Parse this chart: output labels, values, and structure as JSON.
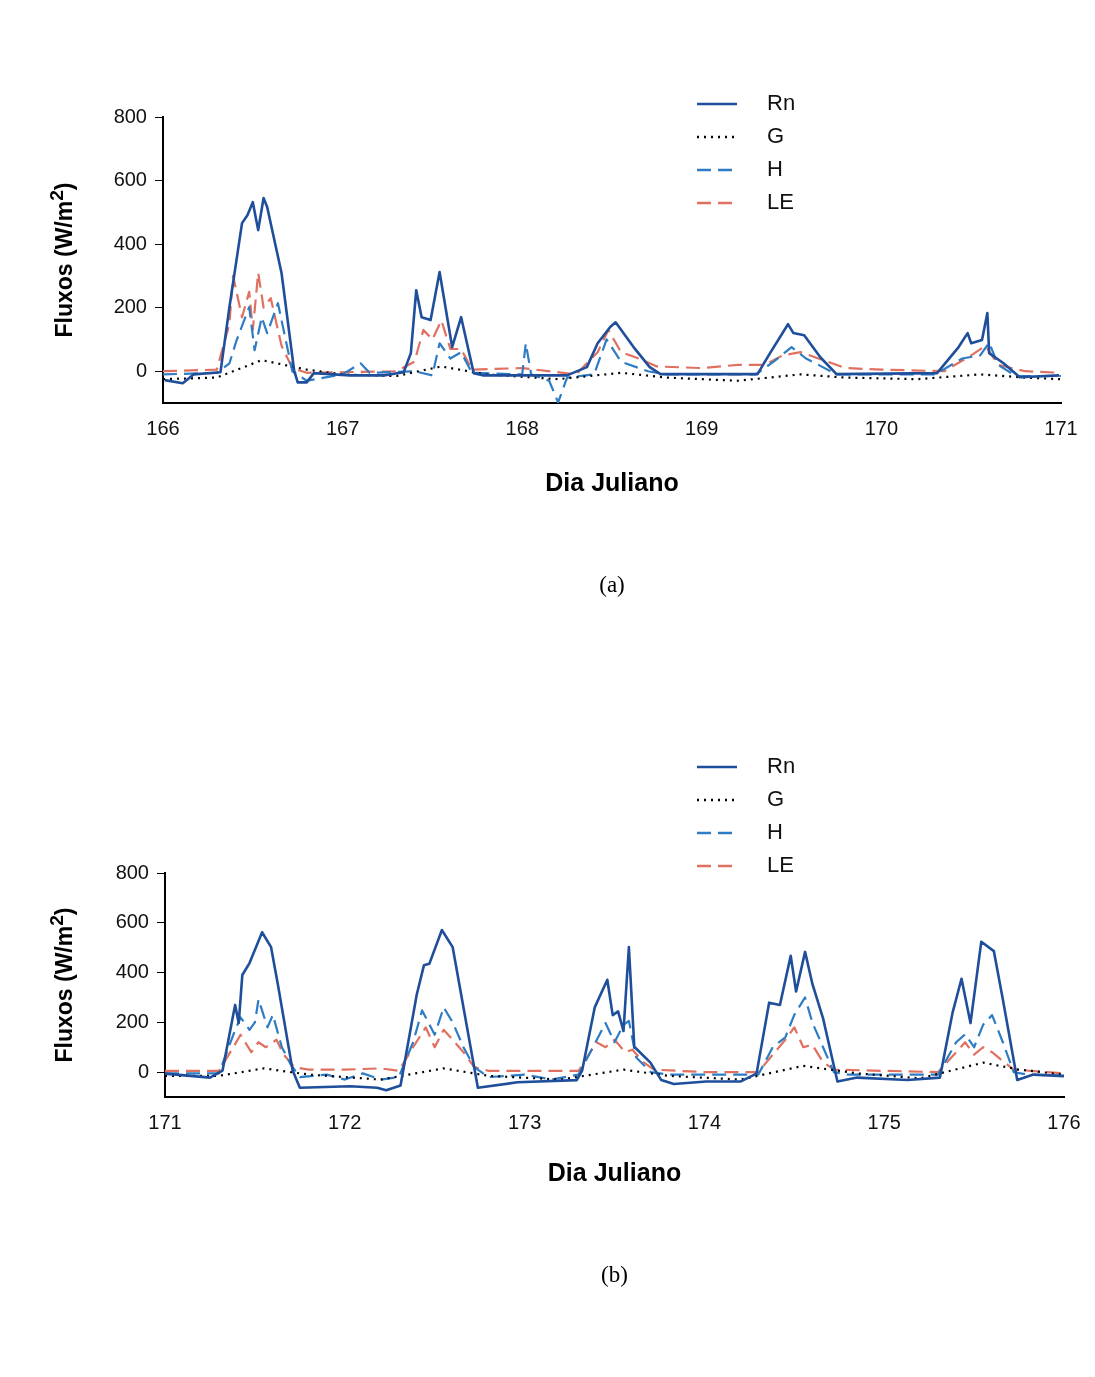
{
  "chart_data": [
    {
      "type": "line",
      "xlabel": "Dia Juliano",
      "ylabel": "Fluxos (W/m$^{2}$)",
      "annotations": [
        "(a)"
      ],
      "xlim": [
        166,
        171
      ],
      "xticks": [
        166,
        167,
        168,
        169,
        170,
        171
      ],
      "ylim": [
        -100,
        800
      ],
      "yticks": [
        0,
        200,
        400,
        600,
        800
      ],
      "legend": "top",
      "marker": "none",
      "series": [
        {
          "name": "Rn",
          "color": "#1f4e9a",
          "line_style": "solid",
          "x": [
            166.01,
            166.11,
            166.17,
            166.32,
            166.37,
            166.44,
            166.47,
            166.5,
            166.53,
            166.56,
            166.58,
            166.66,
            166.73,
            166.75,
            166.8,
            166.84,
            167.04,
            167.23,
            167.34,
            167.38,
            167.41,
            167.44,
            167.49,
            167.54,
            167.61,
            167.66,
            167.73,
            167.78,
            168.25,
            168.36,
            168.42,
            168.49,
            168.52,
            168.62,
            168.71,
            168.77,
            169.31,
            169.38,
            169.48,
            169.51,
            169.57,
            169.66,
            169.75,
            170.31,
            170.43,
            170.48,
            170.5,
            170.56,
            170.59,
            170.6,
            170.68,
            170.77,
            170.99
          ],
          "values": [
            -28,
            -38,
            -10,
            -3,
            202,
            466,
            491,
            532,
            444,
            545,
            517,
            309,
            3,
            -35,
            -35,
            -6,
            -13,
            -13,
            -3,
            57,
            255,
            170,
            161,
            312,
            76,
            170,
            -6,
            -13,
            -13,
            13,
            88,
            139,
            154,
            76,
            13,
            -9,
            -9,
            57,
            148,
            120,
            113,
            44,
            -9,
            -6,
            76,
            120,
            88,
            98,
            183,
            57,
            25,
            -19,
            -13
          ]
        },
        {
          "name": "G",
          "color": "#000000",
          "line_style": "dotted",
          "x": [
            166,
            166.3,
            166.55,
            166.8,
            167,
            167.3,
            167.55,
            167.8,
            168.2,
            168.55,
            168.8,
            169.2,
            169.55,
            169.8,
            170.2,
            170.55,
            170.8,
            171
          ],
          "values": [
            -25,
            -20,
            35,
            5,
            -10,
            -15,
            15,
            -10,
            -25,
            -5,
            -20,
            -30,
            -10,
            -20,
            -25,
            -10,
            -20,
            -25
          ]
        },
        {
          "name": "H",
          "color": "#2e7cc4",
          "line_style": "dashed",
          "x": [
            166,
            166.3,
            166.37,
            166.41,
            166.48,
            166.51,
            166.55,
            166.58,
            166.64,
            166.72,
            166.8,
            167,
            167.1,
            167.15,
            167.4,
            167.5,
            167.54,
            167.6,
            167.66,
            167.72,
            168,
            168.02,
            168.05,
            168.15,
            168.2,
            168.25,
            168.4,
            168.47,
            168.55,
            168.7,
            168.8,
            169.3,
            169.4,
            169.5,
            169.58,
            169.65,
            169.75,
            170.3,
            170.45,
            170.55,
            170.6,
            170.65,
            170.75,
            171
          ],
          "values": [
            -10,
            -5,
            25,
            98,
            202,
            66,
            170,
            120,
            214,
            0,
            -30,
            -10,
            25,
            -5,
            0,
            -13,
            88,
            40,
            60,
            -5,
            -10,
            88,
            -10,
            -30,
            -98,
            -20,
            -10,
            100,
            30,
            0,
            -10,
            -10,
            30,
            76,
            40,
            20,
            -10,
            -10,
            40,
            50,
            90,
            20,
            -15,
            -15
          ]
        },
        {
          "name": "LE",
          "color": "#e07060",
          "line_style": "dashed",
          "x": [
            166,
            166.3,
            166.37,
            166.39,
            166.44,
            166.48,
            166.5,
            166.53,
            166.56,
            166.6,
            166.66,
            166.72,
            166.8,
            167.3,
            167.4,
            167.45,
            167.5,
            167.55,
            167.6,
            167.66,
            167.72,
            168,
            168.3,
            168.42,
            168.48,
            168.55,
            168.65,
            168.75,
            169,
            169.2,
            169.35,
            169.45,
            169.55,
            169.65,
            169.8,
            170,
            170.35,
            170.5,
            170.58,
            170.65,
            170.8,
            171
          ],
          "values": [
            0,
            5,
            150,
            300,
            170,
            250,
            130,
            310,
            200,
            230,
            80,
            10,
            -5,
            0,
            30,
            130,
            100,
            160,
            70,
            70,
            5,
            10,
            -10,
            60,
            130,
            60,
            40,
            15,
            10,
            20,
            20,
            50,
            60,
            40,
            10,
            5,
            0,
            50,
            80,
            20,
            0,
            -5
          ]
        }
      ]
    },
    {
      "type": "line",
      "xlabel": "Dia Juliano",
      "ylabel": "Fluxos (W/m$^{2}$)",
      "annotations": [
        "(b)"
      ],
      "xlim": [
        171,
        176
      ],
      "xticks": [
        171,
        172,
        173,
        174,
        175,
        176
      ],
      "ylim": [
        -100,
        800
      ],
      "yticks": [
        0,
        200,
        400,
        600,
        800
      ],
      "legend": "top",
      "marker": "none",
      "series": [
        {
          "name": "Rn",
          "color": "#1f4e9a",
          "line_style": "solid",
          "x": [
            171,
            171.25,
            171.32,
            171.39,
            171.41,
            171.43,
            171.47,
            171.54,
            171.59,
            171.63,
            171.71,
            171.75,
            172.03,
            172.18,
            172.23,
            172.31,
            172.4,
            172.44,
            172.47,
            172.54,
            172.6,
            172.74,
            172.96,
            173.29,
            173.32,
            173.39,
            173.46,
            173.49,
            173.52,
            173.55,
            173.58,
            173.61,
            173.7,
            173.76,
            173.83,
            174.01,
            174.2,
            174.29,
            174.36,
            174.42,
            174.48,
            174.51,
            174.56,
            174.6,
            174.66,
            174.74,
            174.85,
            175.13,
            175.31,
            175.38,
            175.43,
            175.48,
            175.54,
            175.61,
            175.66,
            175.74,
            175.83,
            176
          ],
          "values": [
            -6,
            -22,
            6,
            270,
            197,
            390,
            438,
            562,
            502,
            343,
            6,
            -63,
            -57,
            -63,
            -73,
            -54,
            311,
            429,
            435,
            571,
            502,
            -63,
            -41,
            -32,
            6,
            260,
            371,
            229,
            244,
            165,
            502,
            102,
            38,
            -32,
            -48,
            -38,
            -38,
            -6,
            279,
            270,
            467,
            324,
            483,
            356,
            216,
            -38,
            -22,
            -32,
            -22,
            238,
            375,
            197,
            524,
            486,
            292,
            -32,
            -10,
            -16
          ]
        },
        {
          "name": "G",
          "color": "#000000",
          "line_style": "dotted",
          "x": [
            171,
            171.3,
            171.55,
            171.8,
            172.2,
            172.55,
            172.8,
            173.2,
            173.55,
            173.8,
            174.2,
            174.55,
            174.85,
            175.2,
            175.55,
            175.75,
            176
          ],
          "values": [
            -15,
            -15,
            15,
            -10,
            -30,
            15,
            -15,
            -30,
            10,
            -15,
            -30,
            25,
            -5,
            -25,
            38,
            10,
            -10
          ]
        },
        {
          "name": "H",
          "color": "#2e7cc4",
          "line_style": "dashed",
          "x": [
            171,
            171.3,
            171.38,
            171.42,
            171.47,
            171.5,
            171.52,
            171.57,
            171.6,
            171.65,
            171.7,
            171.75,
            171.9,
            172,
            172.1,
            172.2,
            172.3,
            172.38,
            172.43,
            172.5,
            172.55,
            172.6,
            172.66,
            172.72,
            172.8,
            173,
            173.15,
            173.3,
            173.38,
            173.45,
            173.5,
            173.55,
            173.58,
            173.62,
            173.7,
            173.8,
            174.3,
            174.38,
            174.45,
            174.5,
            174.56,
            174.6,
            174.66,
            174.72,
            174.8,
            175.3,
            175.4,
            175.45,
            175.5,
            175.55,
            175.6,
            175.66,
            175.72,
            175.8,
            176
          ],
          "values": [
            -5,
            -5,
            150,
            220,
            170,
            200,
            292,
            180,
            230,
            100,
            30,
            -20,
            -10,
            -30,
            -5,
            -30,
            -20,
            120,
            248,
            150,
            260,
            200,
            100,
            20,
            -20,
            -10,
            -30,
            -10,
            100,
            197,
            120,
            190,
            206,
            60,
            0,
            -10,
            -10,
            100,
            140,
            230,
            300,
            200,
            100,
            0,
            -10,
            -10,
            120,
            152,
            100,
            190,
            229,
            120,
            0,
            -10,
            -15
          ]
        },
        {
          "name": "LE",
          "color": "#e07060",
          "line_style": "dashed",
          "x": [
            171,
            171.3,
            171.38,
            171.42,
            171.48,
            171.52,
            171.56,
            171.62,
            171.66,
            171.72,
            171.8,
            172,
            172.2,
            172.3,
            172.38,
            172.45,
            172.5,
            172.55,
            172.6,
            172.66,
            172.72,
            172.8,
            173,
            173.3,
            173.4,
            173.45,
            173.5,
            173.56,
            173.6,
            173.66,
            173.72,
            174,
            174.3,
            174.38,
            174.45,
            174.5,
            174.55,
            174.6,
            174.66,
            174.72,
            175,
            175.3,
            175.4,
            175.45,
            175.5,
            175.55,
            175.6,
            175.65,
            175.72,
            176
          ],
          "values": [
            5,
            5,
            100,
            150,
            80,
            120,
            100,
            130,
            70,
            20,
            10,
            10,
            15,
            5,
            100,
            180,
            100,
            170,
            130,
            80,
            20,
            5,
            5,
            5,
            120,
            100,
            130,
            80,
            90,
            40,
            10,
            0,
            0,
            70,
            130,
            180,
            100,
            110,
            40,
            10,
            5,
            0,
            80,
            120,
            70,
            100,
            80,
            50,
            10,
            -5
          ]
        }
      ]
    }
  ]
}
